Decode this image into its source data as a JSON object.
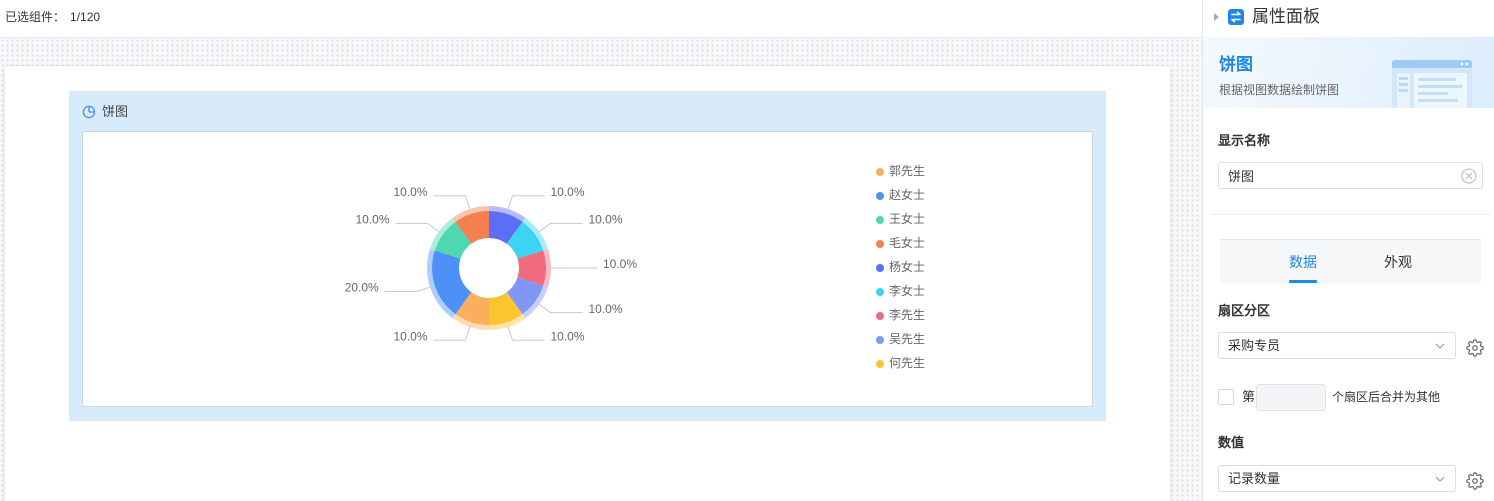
{
  "topbar": {
    "selected_label": "已选组件：",
    "selected_count": "1/120"
  },
  "widget": {
    "icon": "pie-chart-icon"
  },
  "chart_data": {
    "type": "pie",
    "variant": "donut",
    "title": "饼图",
    "categories": [
      "郭先生",
      "赵女士",
      "王女士",
      "毛女士",
      "杨女士",
      "李女士",
      "李先生",
      "吴先生",
      "何先生"
    ],
    "values": [
      10,
      20,
      10,
      10,
      10,
      10,
      10,
      10,
      10
    ],
    "data_labels": [
      "10.0%",
      "20.0%",
      "10.0%",
      "10.0%",
      "10.0%",
      "10.0%",
      "10.0%",
      "10.0%",
      "10.0%"
    ],
    "colors": [
      "#f9af5b",
      "#4d90f7",
      "#4fd8b0",
      "#f47f4f",
      "#5b6ef5",
      "#3cd4f5",
      "#f06b80",
      "#8097f6",
      "#fcc42f"
    ],
    "legend_position": "right"
  },
  "panel": {
    "header_title": "属性面板",
    "header_icon": "sliders-icon",
    "component": {
      "name": "饼图",
      "description": "根据视图数据绘制饼图"
    },
    "display_name": {
      "label": "显示名称",
      "value": "饼图"
    },
    "tabs": [
      {
        "label": "数据",
        "active": true
      },
      {
        "label": "外观",
        "active": false
      }
    ],
    "sector": {
      "label": "扇区分区",
      "value": "采购专员"
    },
    "merge": {
      "checked": false,
      "prefix": "第",
      "count": "",
      "suffix": "个扇区后合并为其他"
    },
    "value_field": {
      "label": "数值",
      "value": "记录数量"
    }
  },
  "colors": {
    "accent": "#1e88e5",
    "widget_background": "#d8ebfb"
  }
}
